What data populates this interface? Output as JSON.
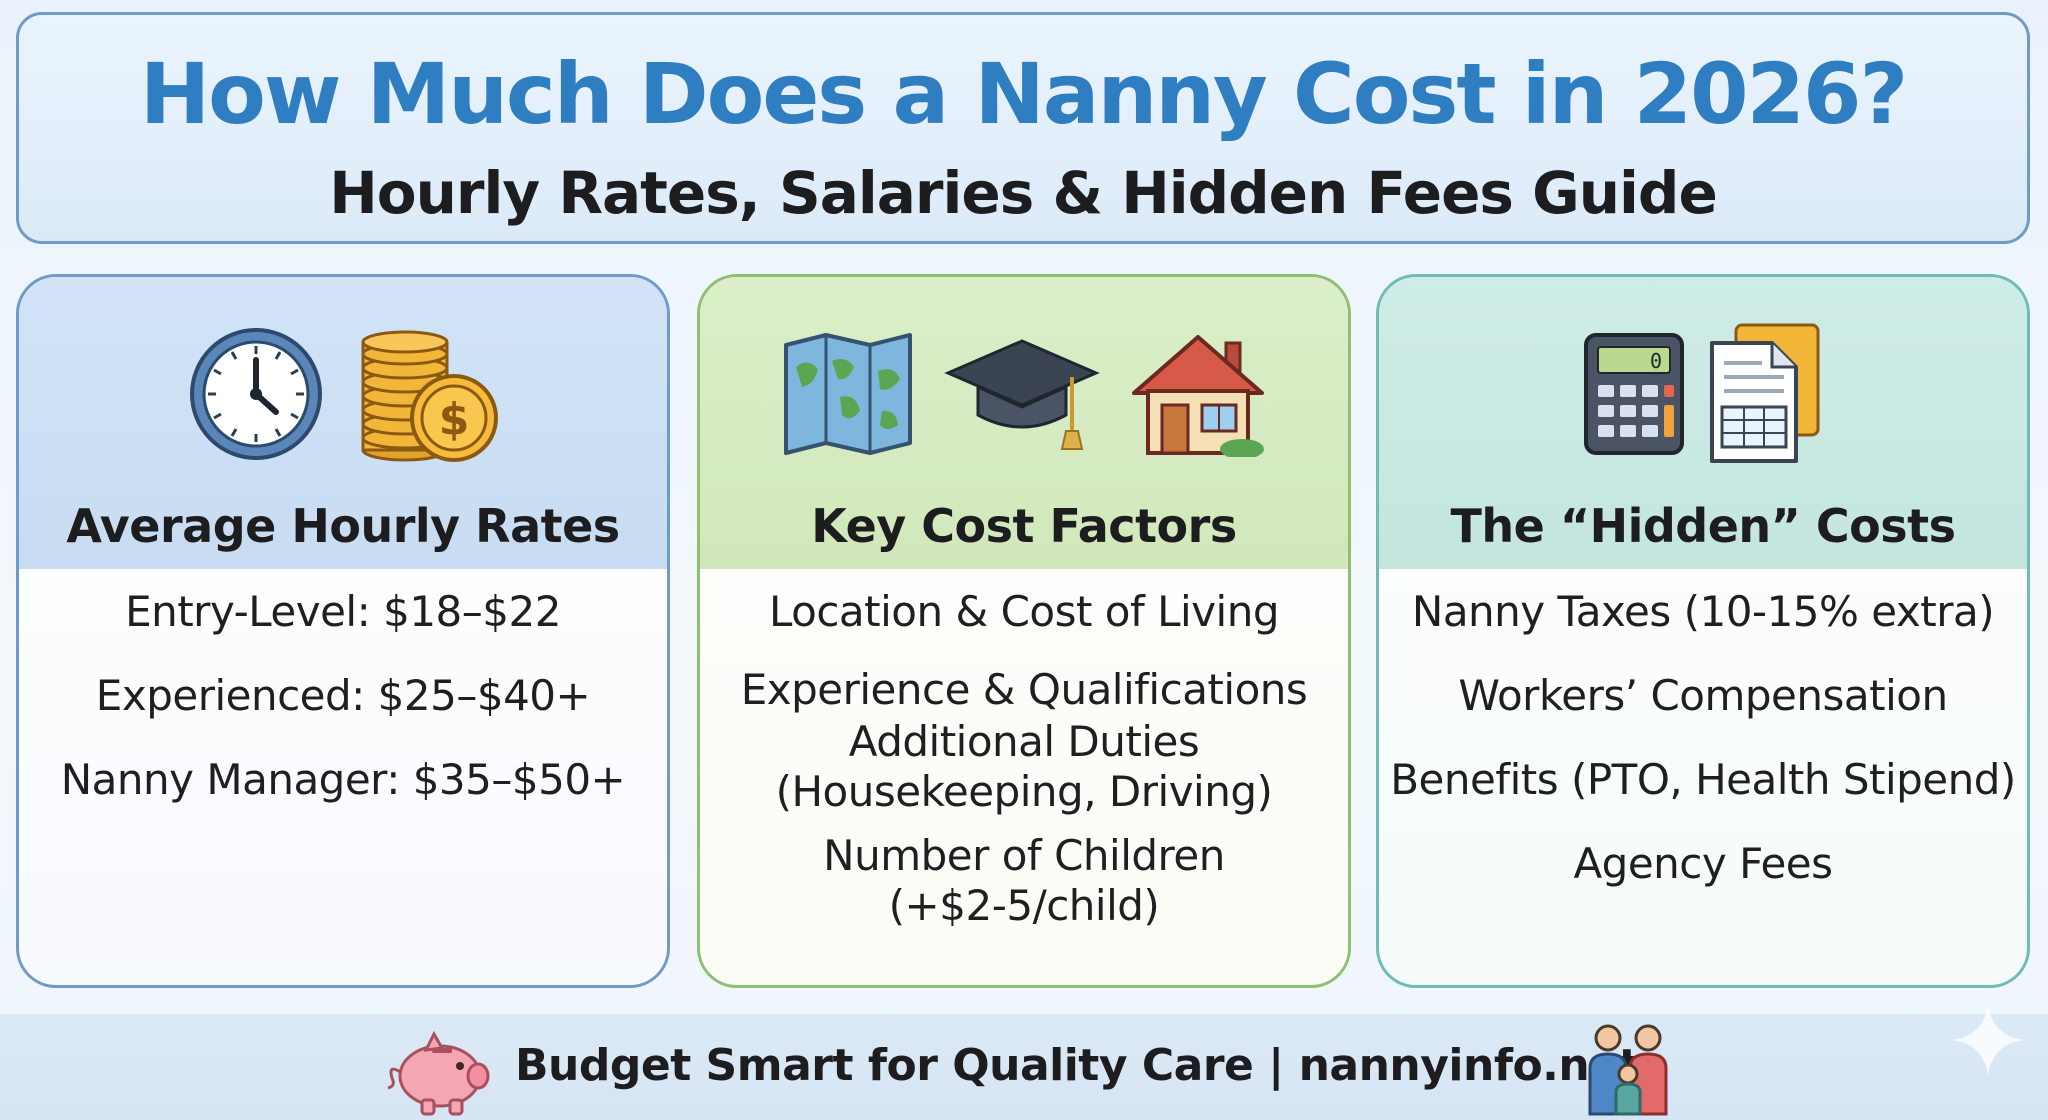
{
  "header": {
    "title": "How Much Does a Nanny Cost in 2026?",
    "subtitle": "Hourly Rates, Salaries & Hidden Fees Guide"
  },
  "cards": [
    {
      "title": "Average Hourly Rates",
      "icons": [
        "clock-icon",
        "coins-icon"
      ],
      "items": [
        "Entry-Level: $18–$22",
        "Experienced: $25–$40+",
        "Nanny Manager: $35–$50+"
      ]
    },
    {
      "title": "Key Cost Factors",
      "icons": [
        "map-icon",
        "graduation-cap-icon",
        "house-icon"
      ],
      "items": [
        "Location & Cost of Living",
        "Experience & Qualifications",
        "Additional Duties",
        "(Housekeeping, Driving)",
        "Number of Children",
        "(+$2-5/child)"
      ]
    },
    {
      "title": "The “Hidden” Costs",
      "icons": [
        "calculator-icon",
        "documents-icon"
      ],
      "items": [
        "Nanny Taxes (10-15% extra)",
        "Workers’ Compensation",
        "Benefits (PTO, Health Stipend)",
        "Agency Fees"
      ]
    }
  ],
  "footer": {
    "text": "Budget Smart for Quality Care | nannyinfo.net",
    "icons": [
      "piggy-bank-icon",
      "family-icon"
    ]
  },
  "colors": {
    "title_blue": "#2f7ec1",
    "card1_border": "#6f9bc9",
    "card2_border": "#8fbf73",
    "card3_border": "#6fbcb3"
  }
}
